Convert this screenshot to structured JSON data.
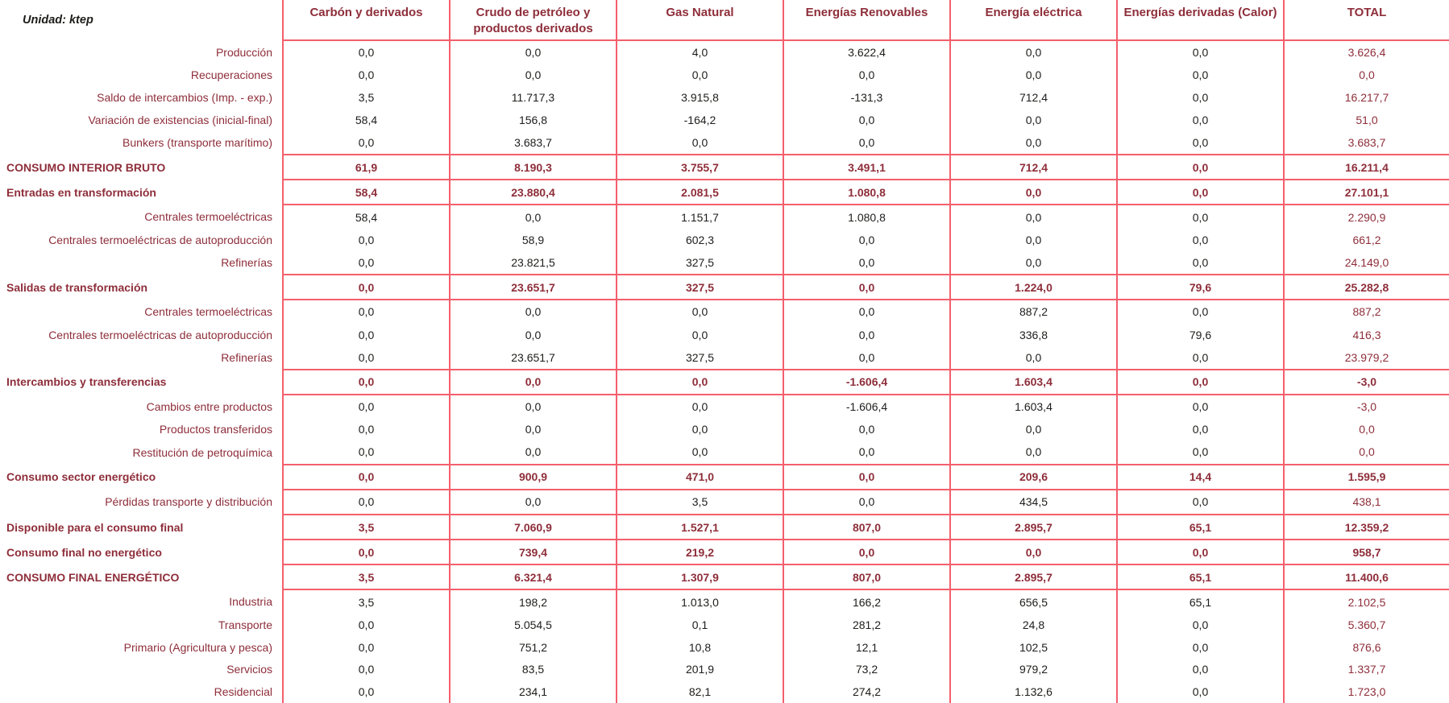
{
  "unit_label": "Unidad: ktep",
  "colors": {
    "grid_line": "#f45f6c",
    "accent_text": "#8e2e3a",
    "value_text": "#1d1d1b",
    "background": "#ffffff"
  },
  "columns": [
    "Carbón y derivados",
    "Crudo de petróleo y productos derivados",
    "Gas Natural",
    "Energías Renovables",
    "Energía eléctrica",
    "Energías derivadas (Calor)",
    "TOTAL"
  ],
  "rows": [
    {
      "label": "Producción",
      "type": "sub",
      "values": [
        "0,0",
        "0,0",
        "4,0",
        "3.622,4",
        "0,0",
        "0,0",
        "3.626,4"
      ]
    },
    {
      "label": "Recuperaciones",
      "type": "sub",
      "values": [
        "0,0",
        "0,0",
        "0,0",
        "0,0",
        "0,0",
        "0,0",
        "0,0"
      ]
    },
    {
      "label": "Saldo de intercambios (Imp. - exp.)",
      "type": "sub",
      "values": [
        "3,5",
        "11.717,3",
        "3.915,8",
        "-131,3",
        "712,4",
        "0,0",
        "16.217,7"
      ]
    },
    {
      "label": "Variación de existencias (inicial-final)",
      "type": "sub",
      "values": [
        "58,4",
        "156,8",
        "-164,2",
        "0,0",
        "0,0",
        "0,0",
        "51,0"
      ]
    },
    {
      "label": "Bunkers (transporte marítimo)",
      "type": "sub",
      "values": [
        "0,0",
        "3.683,7",
        "0,0",
        "0,0",
        "0,0",
        "0,0",
        "3.683,7"
      ]
    },
    {
      "label": "CONSUMO INTERIOR BRUTO",
      "type": "agg",
      "values": [
        "61,9",
        "8.190,3",
        "3.755,7",
        "3.491,1",
        "712,4",
        "0,0",
        "16.211,4"
      ]
    },
    {
      "label": "Entradas en transformación",
      "type": "agg",
      "values": [
        "58,4",
        "23.880,4",
        "2.081,5",
        "1.080,8",
        "0,0",
        "0,0",
        "27.101,1"
      ]
    },
    {
      "label": "Centrales termoeléctricas",
      "type": "sub",
      "values": [
        "58,4",
        "0,0",
        "1.151,7",
        "1.080,8",
        "0,0",
        "0,0",
        "2.290,9"
      ]
    },
    {
      "label": "Centrales termoeléctricas de autoproducción",
      "type": "sub",
      "values": [
        "0,0",
        "58,9",
        "602,3",
        "0,0",
        "0,0",
        "0,0",
        "661,2"
      ]
    },
    {
      "label": "Refinerías",
      "type": "sub",
      "values": [
        "0,0",
        "23.821,5",
        "327,5",
        "0,0",
        "0,0",
        "0,0",
        "24.149,0"
      ]
    },
    {
      "label": "Salidas de transformación",
      "type": "agg",
      "values": [
        "0,0",
        "23.651,7",
        "327,5",
        "0,0",
        "1.224,0",
        "79,6",
        "25.282,8"
      ]
    },
    {
      "label": "Centrales termoeléctricas",
      "type": "sub",
      "values": [
        "0,0",
        "0,0",
        "0,0",
        "0,0",
        "887,2",
        "0,0",
        "887,2"
      ]
    },
    {
      "label": "Centrales termoeléctricas de autoproducción",
      "type": "sub",
      "values": [
        "0,0",
        "0,0",
        "0,0",
        "0,0",
        "336,8",
        "79,6",
        "416,3"
      ]
    },
    {
      "label": "Refinerías",
      "type": "sub",
      "values": [
        "0,0",
        "23.651,7",
        "327,5",
        "0,0",
        "0,0",
        "0,0",
        "23.979,2"
      ]
    },
    {
      "label": "Intercambios y transferencias",
      "type": "agg",
      "values": [
        "0,0",
        "0,0",
        "0,0",
        "-1.606,4",
        "1.603,4",
        "0,0",
        "-3,0"
      ]
    },
    {
      "label": "Cambios entre productos",
      "type": "sub",
      "values": [
        "0,0",
        "0,0",
        "0,0",
        "-1.606,4",
        "1.603,4",
        "0,0",
        "-3,0"
      ]
    },
    {
      "label": "Productos transferidos",
      "type": "sub",
      "values": [
        "0,0",
        "0,0",
        "0,0",
        "0,0",
        "0,0",
        "0,0",
        "0,0"
      ]
    },
    {
      "label": "Restitución de petroquímica",
      "type": "sub",
      "values": [
        "0,0",
        "0,0",
        "0,0",
        "0,0",
        "0,0",
        "0,0",
        "0,0"
      ]
    },
    {
      "label": "Consumo sector energético",
      "type": "agg",
      "values": [
        "0,0",
        "900,9",
        "471,0",
        "0,0",
        "209,6",
        "14,4",
        "1.595,9"
      ]
    },
    {
      "label": "Pérdidas transporte y distribución",
      "type": "sub",
      "values": [
        "0,0",
        "0,0",
        "3,5",
        "0,0",
        "434,5",
        "0,0",
        "438,1"
      ]
    },
    {
      "label": "Disponible para el consumo final",
      "type": "agg",
      "values": [
        "3,5",
        "7.060,9",
        "1.527,1",
        "807,0",
        "2.895,7",
        "65,1",
        "12.359,2"
      ]
    },
    {
      "label": "Consumo final no energético",
      "type": "agg",
      "values": [
        "0,0",
        "739,4",
        "219,2",
        "0,0",
        "0,0",
        "0,0",
        "958,7"
      ]
    },
    {
      "label": "CONSUMO FINAL ENERGÉTICO",
      "type": "agg",
      "values": [
        "3,5",
        "6.321,4",
        "1.307,9",
        "807,0",
        "2.895,7",
        "65,1",
        "11.400,6"
      ]
    },
    {
      "label": "Industria",
      "type": "sub",
      "values": [
        "3,5",
        "198,2",
        "1.013,0",
        "166,2",
        "656,5",
        "65,1",
        "2.102,5"
      ]
    },
    {
      "label": "Transporte",
      "type": "sub",
      "values": [
        "0,0",
        "5.054,5",
        "0,1",
        "281,2",
        "24,8",
        "0,0",
        "5.360,7"
      ]
    },
    {
      "label": "Primario (Agricultura y pesca)",
      "type": "sub",
      "values": [
        "0,0",
        "751,2",
        "10,8",
        "12,1",
        "102,5",
        "0,0",
        "876,6"
      ]
    },
    {
      "label": "Servicios",
      "type": "sub",
      "values": [
        "0,0",
        "83,5",
        "201,9",
        "73,2",
        "979,2",
        "0,0",
        "1.337,7"
      ]
    },
    {
      "label": "Residencial",
      "type": "sub",
      "values": [
        "0,0",
        "234,1",
        "82,1",
        "274,2",
        "1.132,6",
        "0,0",
        "1.723,0"
      ]
    }
  ],
  "chart_data": {
    "type": "table",
    "title": "Balance energético (Unidad: ktep)",
    "columns": [
      "Carbón y derivados",
      "Crudo de petróleo y productos derivados",
      "Gas Natural",
      "Energías Renovables",
      "Energía eléctrica",
      "Energías derivadas (Calor)",
      "TOTAL"
    ],
    "row_labels": [
      "Producción",
      "Recuperaciones",
      "Saldo de intercambios (Imp. - exp.)",
      "Variación de existencias (inicial-final)",
      "Bunkers (transporte marítimo)",
      "CONSUMO INTERIOR BRUTO",
      "Entradas en transformación",
      "Centrales termoeléctricas",
      "Centrales termoeléctricas de autoproducción",
      "Refinerías",
      "Salidas de transformación",
      "Centrales termoeléctricas",
      "Centrales termoeléctricas de autoproducción",
      "Refinerías",
      "Intercambios y transferencias",
      "Cambios entre productos",
      "Productos transferidos",
      "Restitución de petroquímica",
      "Consumo sector energético",
      "Pérdidas transporte y distribución",
      "Disponible para el consumo final",
      "Consumo final no energético",
      "CONSUMO FINAL ENERGÉTICO",
      "Industria",
      "Transporte",
      "Primario (Agricultura y pesca)",
      "Servicios",
      "Residencial"
    ],
    "values": [
      [
        0.0,
        0.0,
        4.0,
        3622.4,
        0.0,
        0.0,
        3626.4
      ],
      [
        0.0,
        0.0,
        0.0,
        0.0,
        0.0,
        0.0,
        0.0
      ],
      [
        3.5,
        11717.3,
        3915.8,
        -131.3,
        712.4,
        0.0,
        16217.7
      ],
      [
        58.4,
        156.8,
        -164.2,
        0.0,
        0.0,
        0.0,
        51.0
      ],
      [
        0.0,
        3683.7,
        0.0,
        0.0,
        0.0,
        0.0,
        3683.7
      ],
      [
        61.9,
        8190.3,
        3755.7,
        3491.1,
        712.4,
        0.0,
        16211.4
      ],
      [
        58.4,
        23880.4,
        2081.5,
        1080.8,
        0.0,
        0.0,
        27101.1
      ],
      [
        58.4,
        0.0,
        1151.7,
        1080.8,
        0.0,
        0.0,
        2290.9
      ],
      [
        0.0,
        58.9,
        602.3,
        0.0,
        0.0,
        0.0,
        661.2
      ],
      [
        0.0,
        23821.5,
        327.5,
        0.0,
        0.0,
        0.0,
        24149.0
      ],
      [
        0.0,
        23651.7,
        327.5,
        0.0,
        1224.0,
        79.6,
        25282.8
      ],
      [
        0.0,
        0.0,
        0.0,
        0.0,
        887.2,
        0.0,
        887.2
      ],
      [
        0.0,
        0.0,
        0.0,
        0.0,
        336.8,
        79.6,
        416.3
      ],
      [
        0.0,
        23651.7,
        327.5,
        0.0,
        0.0,
        0.0,
        23979.2
      ],
      [
        0.0,
        0.0,
        0.0,
        -1606.4,
        1603.4,
        0.0,
        -3.0
      ],
      [
        0.0,
        0.0,
        0.0,
        -1606.4,
        1603.4,
        0.0,
        -3.0
      ],
      [
        0.0,
        0.0,
        0.0,
        0.0,
        0.0,
        0.0,
        0.0
      ],
      [
        0.0,
        0.0,
        0.0,
        0.0,
        0.0,
        0.0,
        0.0
      ],
      [
        0.0,
        900.9,
        471.0,
        0.0,
        209.6,
        14.4,
        1595.9
      ],
      [
        0.0,
        0.0,
        3.5,
        0.0,
        434.5,
        0.0,
        438.1
      ],
      [
        3.5,
        7060.9,
        1527.1,
        807.0,
        2895.7,
        65.1,
        12359.2
      ],
      [
        0.0,
        739.4,
        219.2,
        0.0,
        0.0,
        0.0,
        958.7
      ],
      [
        3.5,
        6321.4,
        1307.9,
        807.0,
        2895.7,
        65.1,
        11400.6
      ],
      [
        3.5,
        198.2,
        1013.0,
        166.2,
        656.5,
        65.1,
        2102.5
      ],
      [
        0.0,
        5054.5,
        0.1,
        281.2,
        24.8,
        0.0,
        5360.7
      ],
      [
        0.0,
        751.2,
        10.8,
        12.1,
        102.5,
        0.0,
        876.6
      ],
      [
        0.0,
        83.5,
        201.9,
        73.2,
        979.2,
        0.0,
        1337.7
      ],
      [
        0.0,
        234.1,
        82.1,
        274.2,
        1132.6,
        0.0,
        1723.0
      ]
    ],
    "legend_position": "none",
    "grid": "partial-red-lines"
  }
}
